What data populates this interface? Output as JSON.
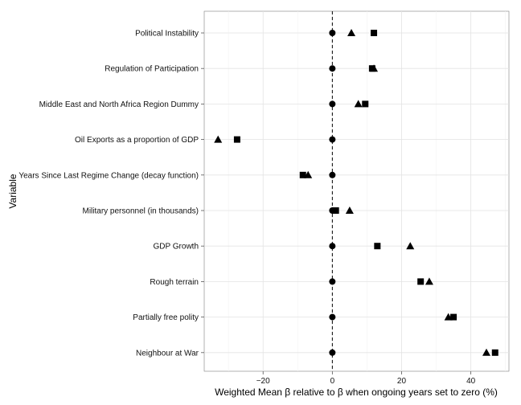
{
  "chart_data": {
    "type": "scatter",
    "xlabel": "Weighted Mean β relative to β when ongoing years set to zero (%)",
    "ylabel": "Variable",
    "xlim": [
      -37,
      51
    ],
    "x_ticks": [
      -20,
      0,
      20,
      40
    ],
    "x_tick_labels": [
      "−20",
      "0",
      "20",
      "40"
    ],
    "grid": true,
    "reference_line": {
      "x": 0,
      "style": "dashed"
    },
    "categories": [
      "Political Instability",
      "Regulation of Participation",
      "Middle East and North Africa Region Dummy",
      "Oil Exports as a proportion of GDP",
      "Years Since Last Regime Change (decay function)",
      "Military personnel (in thousands)",
      "GDP Growth",
      "Rough terrain",
      "Partially free polity",
      "Neighbour at War"
    ],
    "series": [
      {
        "marker": "circle",
        "values": [
          0,
          0,
          0,
          0,
          0,
          0,
          0,
          0,
          0,
          0
        ]
      },
      {
        "marker": "square",
        "values": [
          12,
          11.5,
          9.5,
          -27.5,
          -8.5,
          1,
          13,
          25.5,
          35,
          47
        ]
      },
      {
        "marker": "triangle",
        "values": [
          5.5,
          12,
          7.5,
          -33,
          -7,
          5,
          22.5,
          28,
          33.5,
          44.5
        ]
      }
    ]
  }
}
